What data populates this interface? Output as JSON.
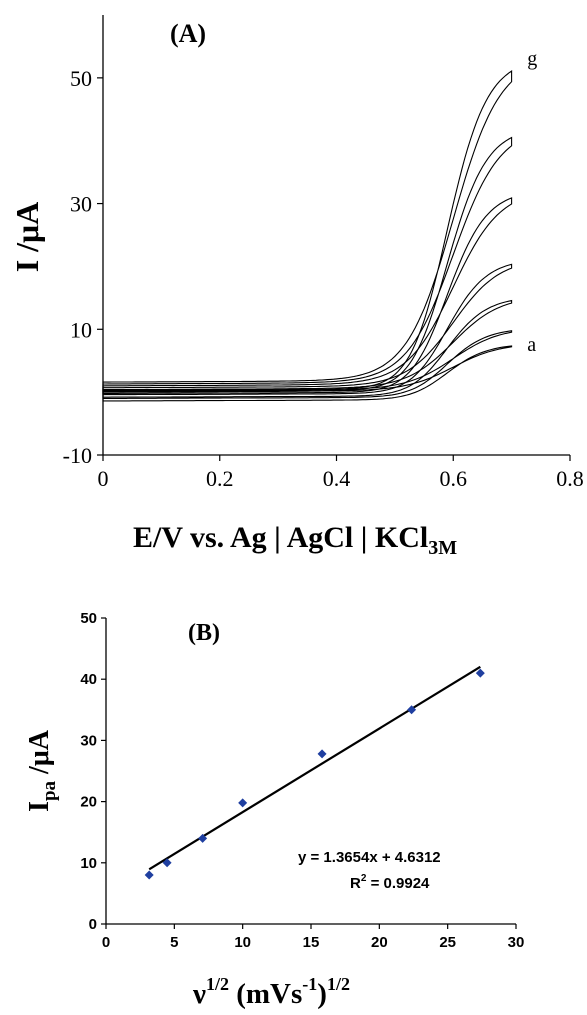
{
  "chart_data": [
    {
      "type": "line",
      "panel_label": "(A)",
      "xlabel": "E/V vs. Ag | AgCl | KCl",
      "xlabel_sub": "3M",
      "ylabel": "I /μA",
      "xlim": [
        0,
        0.8
      ],
      "ylim": [
        -10,
        60
      ],
      "x_ticks": [
        0,
        0.2,
        0.4,
        0.6,
        0.8
      ],
      "x_tick_labels": [
        "0",
        "0.2",
        "0.4",
        "0.6",
        "0.8"
      ],
      "y_ticks": [
        -10,
        10,
        30,
        50
      ],
      "y_tick_labels": [
        "-10",
        "10",
        "30",
        "50"
      ],
      "curve_labels": [
        {
          "text": "g",
          "x": 0.72,
          "y": 53
        },
        {
          "text": "a",
          "x": 0.72,
          "y": 7.5
        }
      ],
      "series": [
        {
          "id": "a",
          "peak": 6.5,
          "end": 7.5,
          "forward_base": 0.0,
          "reverse_base": -1.4
        },
        {
          "id": "b",
          "peak": 8.5,
          "end": 10.0,
          "forward_base": 0.2,
          "reverse_base": -1.0
        },
        {
          "id": "c",
          "peak": 12.0,
          "end": 15.0,
          "forward_base": 0.4,
          "reverse_base": -0.8
        },
        {
          "id": "d",
          "peak": 17.0,
          "end": 21.0,
          "forward_base": 0.7,
          "reverse_base": -0.4
        },
        {
          "id": "e",
          "peak": 25.0,
          "end": 32.0,
          "forward_base": 1.0,
          "reverse_base": -0.2
        },
        {
          "id": "f",
          "peak": 34.0,
          "end": 42.0,
          "forward_base": 1.3,
          "reverse_base": 0.1
        },
        {
          "id": "g",
          "peak": 44.0,
          "end": 53.0,
          "forward_base": 1.6,
          "reverse_base": 0.3
        }
      ]
    },
    {
      "type": "scatter",
      "panel_label": "(B)",
      "xlabel": "ν",
      "xlabel_sup1": "1/2",
      "xlabel_mid": " (mVs",
      "xlabel_sup2": "-1",
      "xlabel_end": ")",
      "xlabel_sup3": "1/2",
      "ylabel": "I",
      "ylabel_sub": "pa",
      "ylabel_rest": " /μA",
      "xlim": [
        0,
        30
      ],
      "ylim": [
        0,
        50
      ],
      "x_ticks": [
        0,
        5,
        10,
        15,
        20,
        25,
        30
      ],
      "x_tick_labels": [
        "0",
        "5",
        "10",
        "15",
        "20",
        "25",
        "30"
      ],
      "y_ticks": [
        0,
        10,
        20,
        30,
        40,
        50
      ],
      "y_tick_labels": [
        "0",
        "10",
        "20",
        "30",
        "40",
        "50"
      ],
      "x": [
        3.16,
        4.47,
        7.07,
        10.0,
        15.81,
        22.36,
        27.39
      ],
      "y": [
        8.0,
        10.0,
        14.0,
        19.8,
        27.8,
        35.0,
        41.0
      ],
      "point_color": "#1f3fa0",
      "fit": {
        "slope": 1.3654,
        "intercept": 4.6312,
        "x_range": [
          3.16,
          27.39
        ]
      },
      "annotations": {
        "equation": "y = 1.3654x + 4.6312",
        "r2_label": "R",
        "r2_sup": "2",
        "r2_value": " = 0.9924"
      }
    }
  ]
}
